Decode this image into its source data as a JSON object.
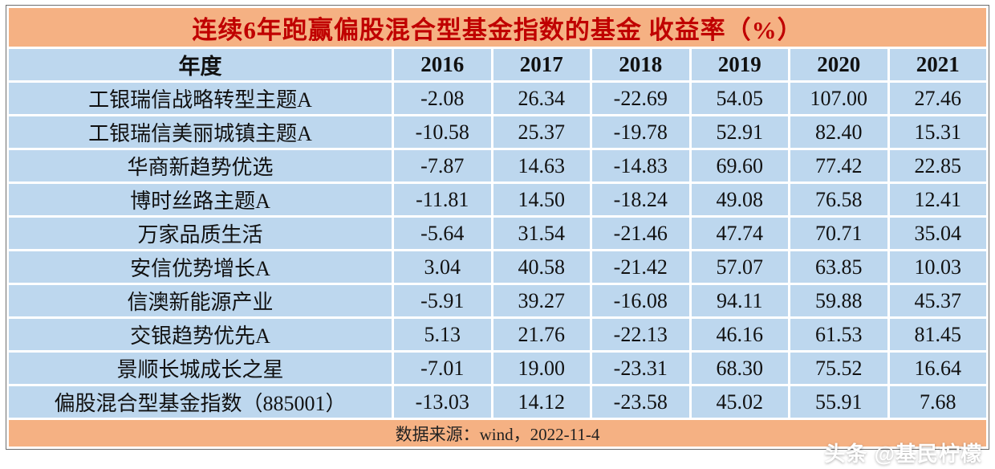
{
  "title": "连续6年跑赢偏股混合型基金指数的基金 收益率（%）",
  "chart_data": {
    "type": "table",
    "title": "连续6年跑赢偏股混合型基金指数的基金 收益率（%）",
    "columns": [
      "年度",
      "2016",
      "2017",
      "2018",
      "2019",
      "2020",
      "2021"
    ],
    "rows": [
      {
        "name": "工银瑞信战略转型主题A",
        "values": [
          "-2.08",
          "26.34",
          "-22.69",
          "54.05",
          "107.00",
          "27.46"
        ]
      },
      {
        "name": "工银瑞信美丽城镇主题A",
        "values": [
          "-10.58",
          "25.37",
          "-19.78",
          "52.91",
          "82.40",
          "15.31"
        ]
      },
      {
        "name": "华商新趋势优选",
        "values": [
          "-7.87",
          "14.63",
          "-14.83",
          "69.60",
          "77.42",
          "22.85"
        ]
      },
      {
        "name": "博时丝路主题A",
        "values": [
          "-11.81",
          "14.50",
          "-18.24",
          "49.08",
          "76.58",
          "12.41"
        ]
      },
      {
        "name": "万家品质生活",
        "values": [
          "-5.64",
          "31.54",
          "-21.46",
          "47.74",
          "70.71",
          "35.04"
        ]
      },
      {
        "name": "安信优势增长A",
        "values": [
          "3.04",
          "40.58",
          "-21.42",
          "57.07",
          "63.85",
          "10.03"
        ]
      },
      {
        "name": "信澳新能源产业",
        "values": [
          "-5.91",
          "39.27",
          "-16.08",
          "94.11",
          "59.88",
          "45.37"
        ]
      },
      {
        "name": "交银趋势优先A",
        "values": [
          "5.13",
          "21.76",
          "-22.13",
          "46.16",
          "61.53",
          "81.45"
        ]
      },
      {
        "name": "景顺长城成长之星",
        "values": [
          "-7.01",
          "19.00",
          "-23.31",
          "68.30",
          "75.52",
          "16.64"
        ]
      },
      {
        "name": "偏股混合型基金指数（885001）",
        "values": [
          "-13.03",
          "14.12",
          "-23.58",
          "45.02",
          "55.91",
          "7.68"
        ]
      }
    ],
    "source": "数据来源：wind，2022-11-4",
    "legend_position": "none",
    "grid": "white-gridlines"
  },
  "watermark": "头条 @基民柠檬",
  "colors": {
    "title_bg": "#f5b183",
    "title_text": "#c00000",
    "cell_bg": "#bdd7ee",
    "footer_bg": "#f5b183",
    "border": "#ffffff",
    "watermark_text": "#ffffff"
  }
}
